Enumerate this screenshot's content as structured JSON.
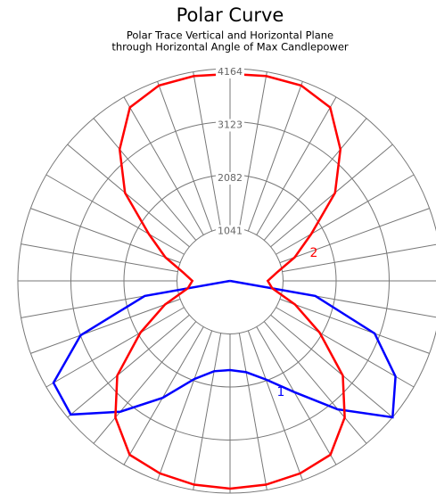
{
  "chart_data": {
    "type": "polar",
    "title": "Polar Curve",
    "subtitle": [
      "Polar Trace Vertical and Horizontal Plane",
      "through Horizontal Angle of Max Candlepower"
    ],
    "rlim": [
      0,
      4164
    ],
    "rticks": [
      1041,
      2082,
      3123,
      4164
    ],
    "series": [
      {
        "name": "1",
        "color": "#0000ff",
        "angles": [
          270,
          280,
          290,
          300,
          310,
          320,
          330,
          340,
          350,
          0,
          10,
          20,
          30,
          40,
          50,
          60,
          70,
          80,
          90
        ],
        "values": [
          0,
          1700,
          3120,
          4000,
          4080,
          3350,
          2650,
          2050,
          1800,
          1750,
          1820,
          2060,
          2520,
          3290,
          4164,
          3750,
          3020,
          1700,
          0
        ]
      },
      {
        "name": "2",
        "color": "#ff0000",
        "angles": [
          0,
          10,
          20,
          30,
          40,
          50,
          60,
          70,
          80,
          90,
          100,
          110,
          120,
          130,
          140,
          150,
          160,
          170,
          180,
          190,
          200,
          210,
          220,
          230,
          240,
          250,
          260,
          270,
          280,
          290,
          300,
          310,
          320,
          330,
          340,
          350
        ],
        "values": [
          4077,
          4060,
          4020,
          3940,
          3500,
          2890,
          2030,
          1360,
          840,
          740,
          930,
          1350,
          1840,
          2690,
          3370,
          3930,
          4080,
          4080,
          4060,
          4080,
          4080,
          3930,
          3370,
          2690,
          1840,
          1350,
          930,
          740,
          840,
          1360,
          2030,
          2890,
          3500,
          3940,
          4020,
          4060
        ]
      }
    ]
  }
}
